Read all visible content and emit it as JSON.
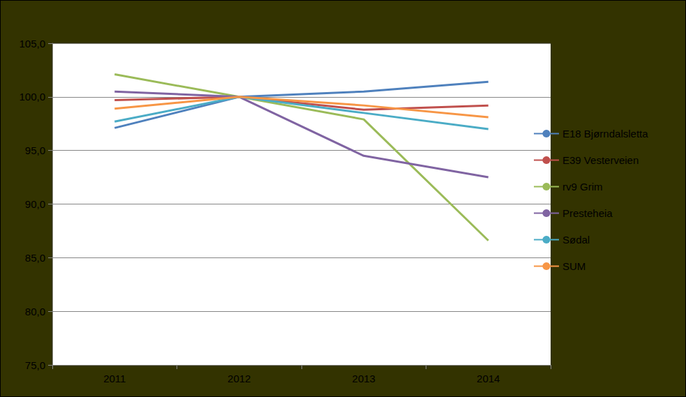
{
  "chart_data": {
    "type": "line",
    "categories": [
      "2011",
      "2012",
      "2013",
      "2014"
    ],
    "series": [
      {
        "name": "E18 Bjørndalsletta",
        "color": "#4f81bd",
        "values": [
          97.1,
          100.0,
          100.5,
          101.4
        ]
      },
      {
        "name": "E39 Vesterveien",
        "color": "#c0504d",
        "values": [
          99.7,
          100.0,
          98.8,
          99.2
        ]
      },
      {
        "name": "rv9 Grim",
        "color": "#9bbb59",
        "values": [
          102.1,
          100.0,
          97.9,
          86.6
        ]
      },
      {
        "name": "Presteheia",
        "color": "#8064a2",
        "values": [
          100.5,
          100.0,
          94.5,
          92.5
        ]
      },
      {
        "name": "Sødal",
        "color": "#4bacc6",
        "values": [
          97.7,
          100.0,
          98.5,
          97.0
        ]
      },
      {
        "name": "SUM",
        "color": "#f79646",
        "values": [
          98.9,
          100.0,
          99.2,
          98.1
        ]
      }
    ],
    "ylim": [
      75,
      105
    ],
    "yticks": [
      {
        "value": 75,
        "label": "75,0"
      },
      {
        "value": 80,
        "label": "80,0"
      },
      {
        "value": 85,
        "label": "85,0"
      },
      {
        "value": 90,
        "label": "90,0"
      },
      {
        "value": 95,
        "label": "95,0"
      },
      {
        "value": 100,
        "label": "100,0"
      },
      {
        "value": 105,
        "label": "105,0"
      }
    ],
    "grid": true,
    "legend": "right"
  }
}
